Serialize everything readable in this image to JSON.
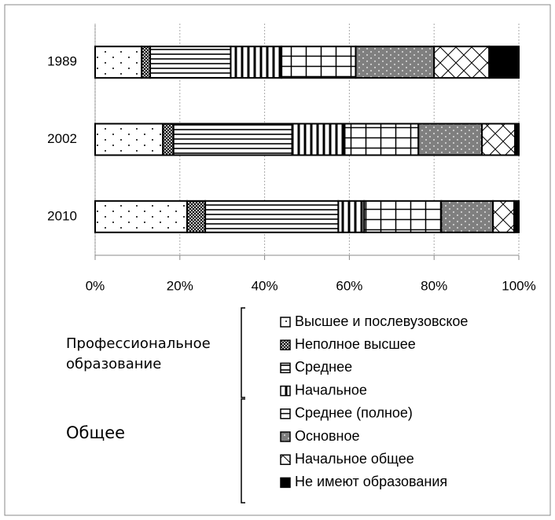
{
  "chart_data": {
    "type": "stacked_barh",
    "categories": [
      "1989",
      "2002",
      "2010"
    ],
    "series": [
      {
        "name": "Высшее и послевузовское",
        "color": "#ffffff",
        "values": [
          11,
          16,
          21.7
        ]
      },
      {
        "name": "Неполное высшее",
        "color": "#ffffff",
        "values": [
          2,
          2.5,
          4.3
        ]
      },
      {
        "name": "Среднее",
        "color": "#ffffff",
        "values": [
          19,
          28,
          31.4
        ]
      },
      {
        "name": "Начальное",
        "color": "#ffffff",
        "values": [
          12,
          12.4,
          6.1
        ]
      },
      {
        "name": "Среднее (полное)",
        "color": "#ffffff",
        "values": [
          17.5,
          17.4,
          18.2
        ]
      },
      {
        "name": "Основное",
        "color": "#7f7f7f",
        "values": [
          18.5,
          15,
          12.2
        ]
      },
      {
        "name": "Начальное общее",
        "color": "#ffffff",
        "values": [
          13,
          7.8,
          5
        ]
      },
      {
        "name": "Не имеют образования",
        "color": "#000000",
        "values": [
          7,
          0.9,
          1.1
        ]
      }
    ],
    "xlim": [
      0,
      100
    ],
    "xticks": [
      {
        "value": 0,
        "label": "0%"
      },
      {
        "value": 20,
        "label": "20%"
      },
      {
        "value": 40,
        "label": "40%"
      },
      {
        "value": 60,
        "label": "60%"
      },
      {
        "value": 80,
        "label": "80%"
      },
      {
        "value": 100,
        "label": "100%"
      }
    ],
    "grid": true,
    "legend_groups": [
      {
        "label": "Профессиональное образование",
        "series": [
          0,
          1,
          2,
          3
        ]
      },
      {
        "label": "Общее",
        "series": [
          4,
          5,
          6,
          7
        ]
      }
    ]
  }
}
